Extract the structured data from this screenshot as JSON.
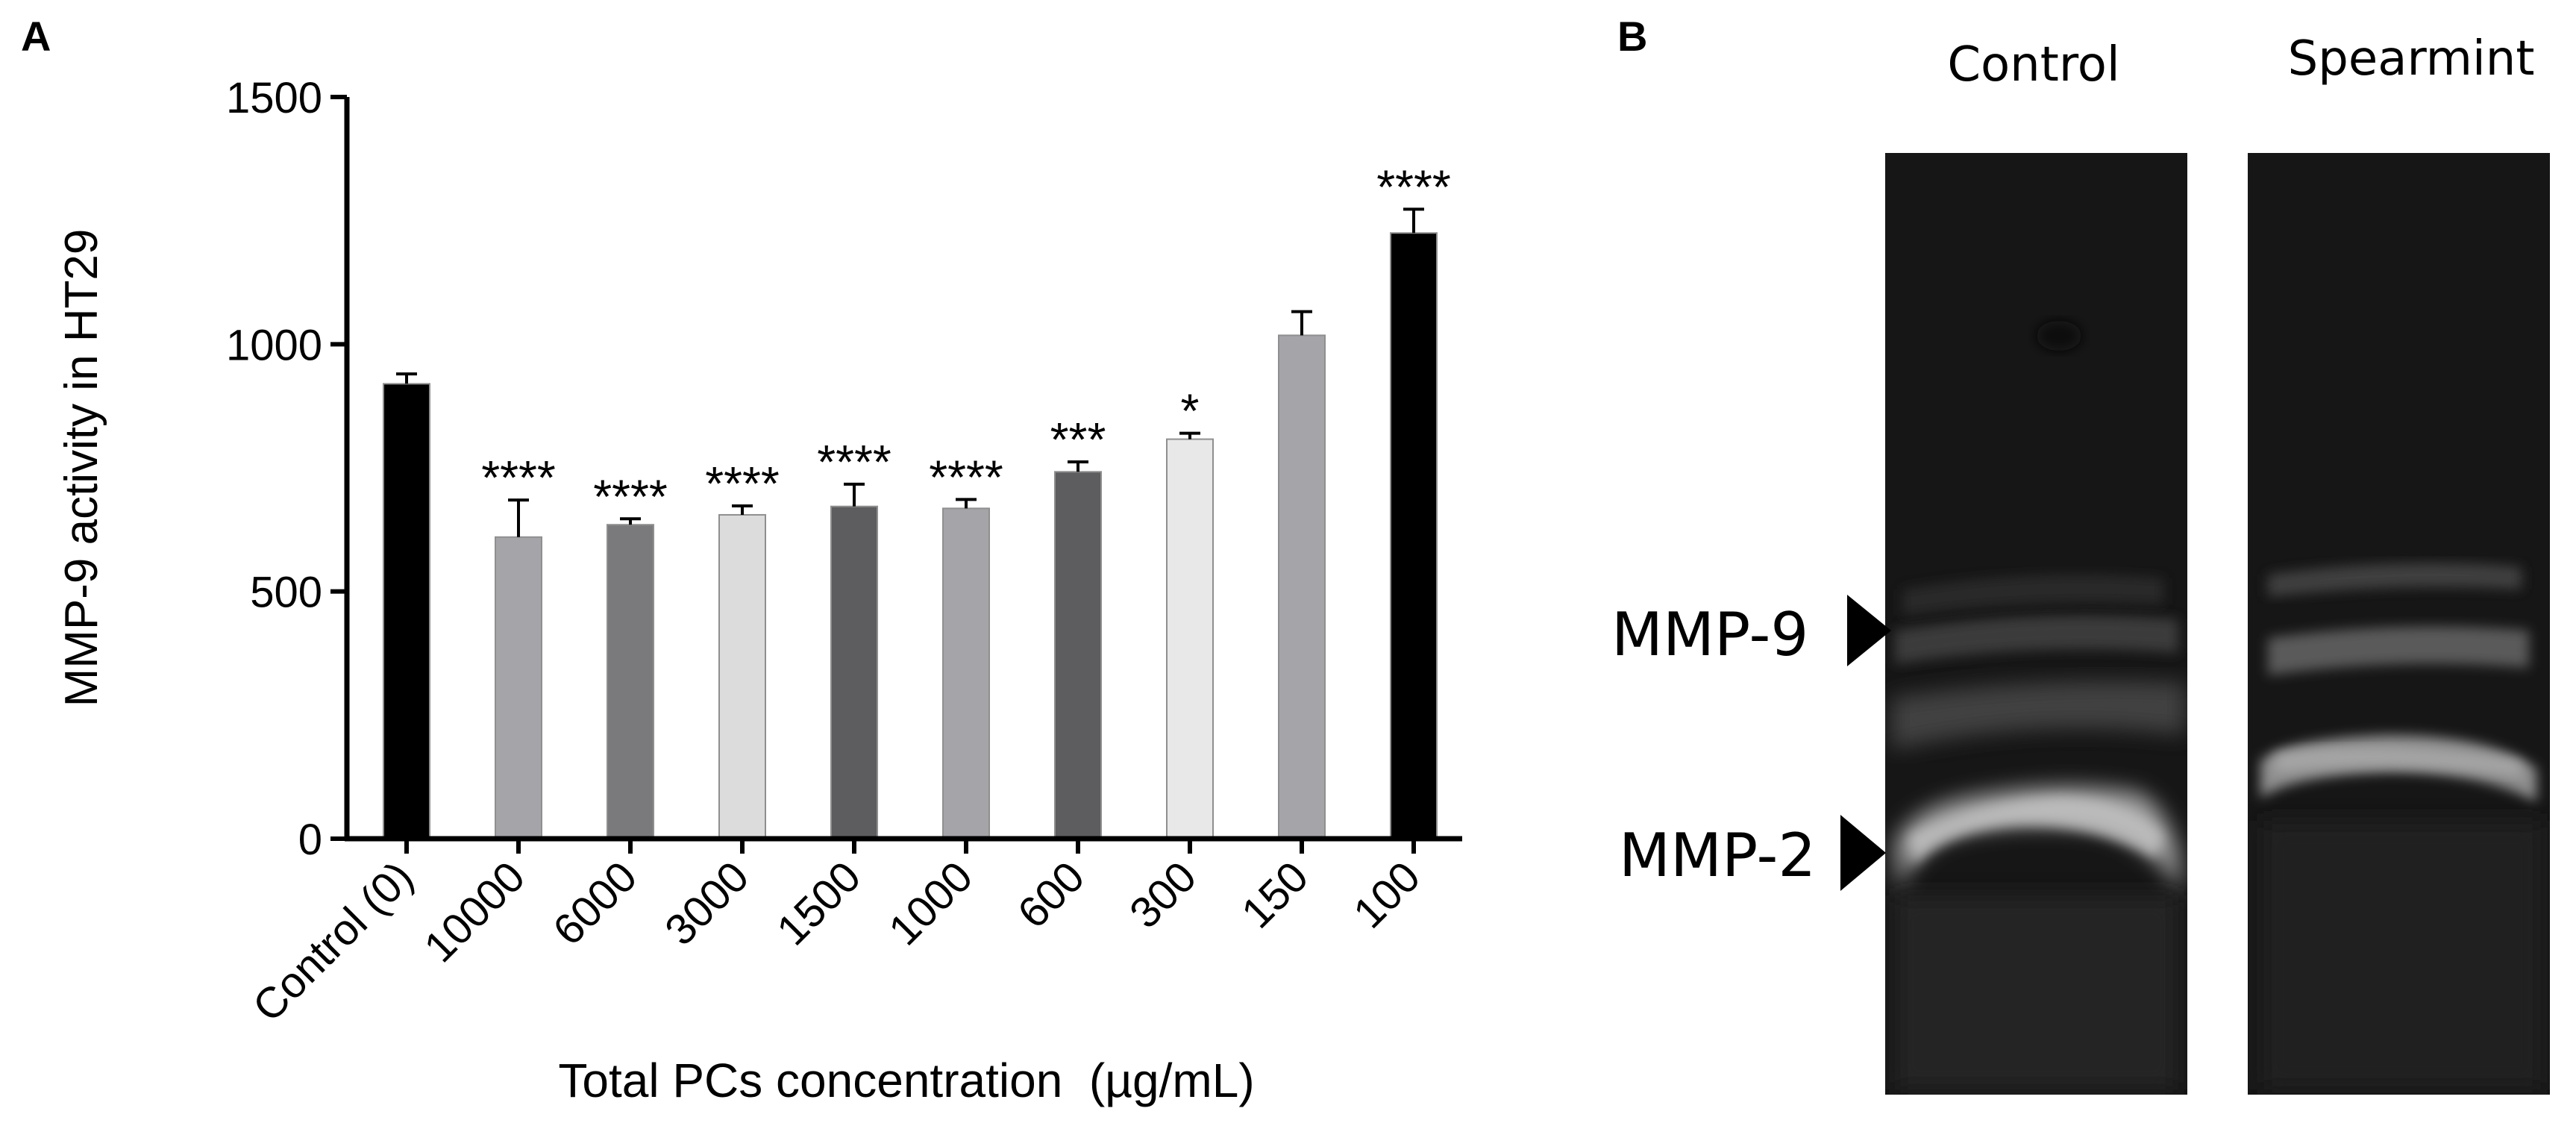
{
  "panels": {
    "a": {
      "label": "A"
    },
    "b": {
      "label": "B"
    }
  },
  "chart_data": {
    "type": "bar",
    "title": "",
    "xlabel": "Total PCs concentration  (µg/mL)",
    "ylabel": "MMP-9 activity in HT29",
    "ylim": [
      0,
      1500
    ],
    "yticks": [
      0,
      500,
      1000,
      1500
    ],
    "grid": false,
    "legend": "none",
    "categories": [
      "Control (0)",
      "10000",
      "6000",
      "3000",
      "1500",
      "1000",
      "600",
      "300",
      "150",
      "100"
    ],
    "values": [
      920,
      610,
      635,
      655,
      672,
      668,
      742,
      808,
      1018,
      1225
    ],
    "error": [
      20,
      75,
      12,
      18,
      45,
      18,
      20,
      12,
      48,
      48
    ],
    "significance": [
      "",
      "****",
      "****",
      "****",
      "****",
      "****",
      "***",
      "*",
      "",
      "****"
    ],
    "colors": [
      "#000000",
      "#a5a5a9",
      "#7a7a7c",
      "#dcdcdc",
      "#5d5d5f",
      "#a5a5a9",
      "#5d5d5f",
      "#e8e8e8",
      "#a5a5a9",
      "#000000"
    ]
  },
  "gel": {
    "lanes": [
      "Control",
      "Spearmint"
    ],
    "markers": [
      "MMP-9",
      "MMP-2"
    ]
  }
}
